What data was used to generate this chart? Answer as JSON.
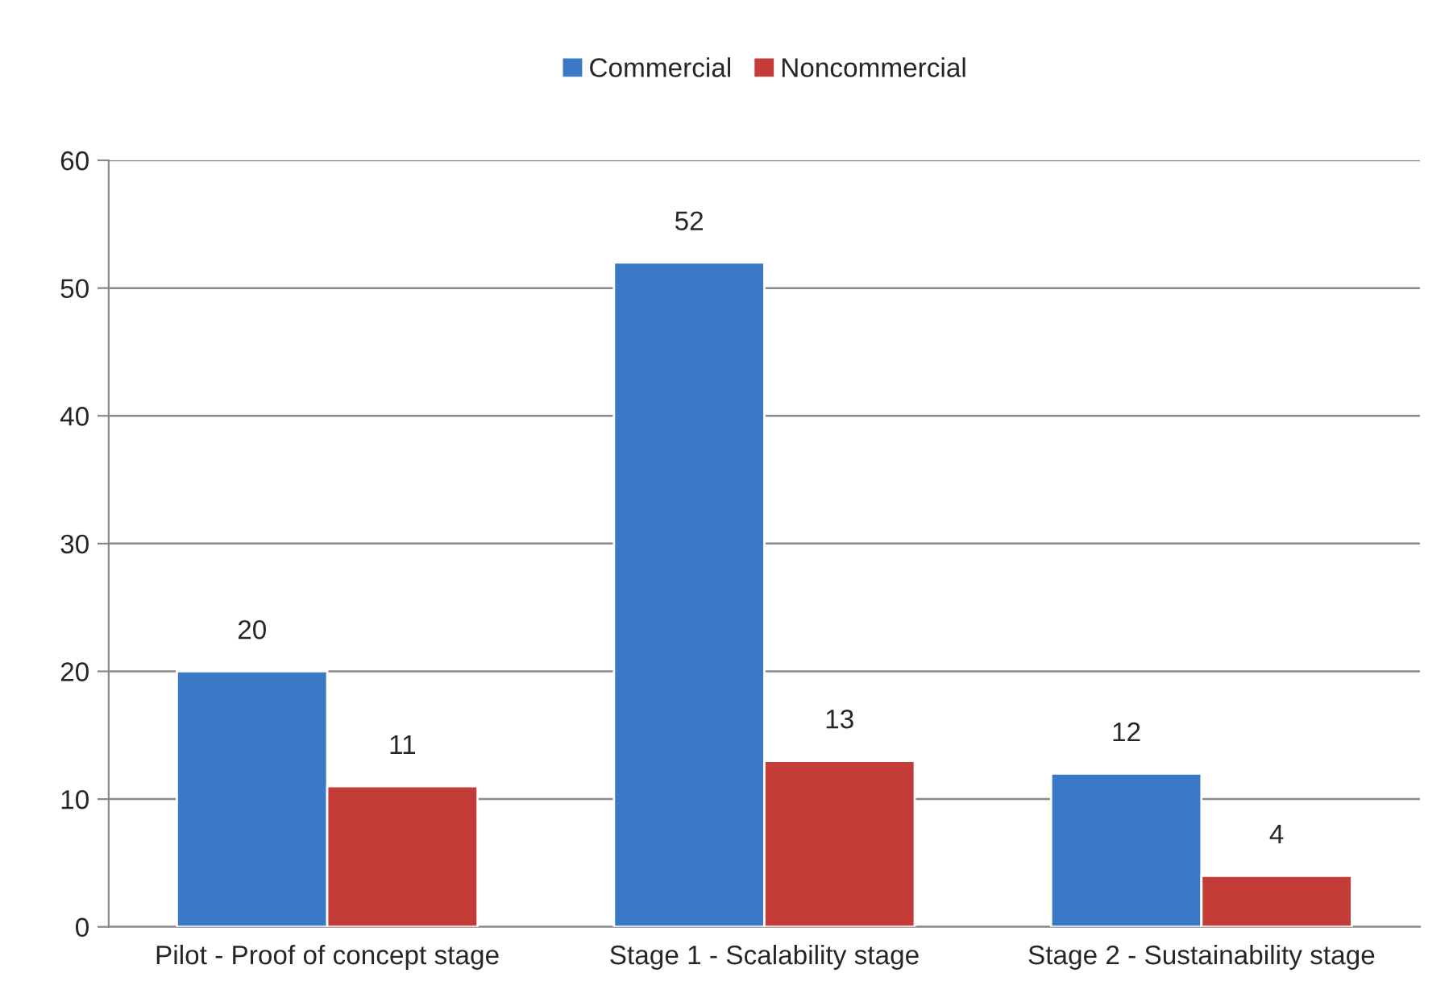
{
  "chart_data": {
    "type": "bar",
    "categories": [
      "Pilot - Proof of concept stage",
      "Stage 1 - Scalability stage",
      "Stage 2 - Sustainability stage"
    ],
    "series": [
      {
        "name": "Commercial",
        "color": "#3b78c6",
        "values": [
          20,
          52,
          12
        ]
      },
      {
        "name": "Noncommercial",
        "color": "#c43c37",
        "values": [
          11,
          13,
          4
        ]
      }
    ],
    "ylim": [
      0,
      60
    ],
    "yticks": [
      0,
      10,
      20,
      30,
      40,
      50,
      60
    ],
    "grid": "y",
    "legend": "top",
    "data_labels": true
  }
}
